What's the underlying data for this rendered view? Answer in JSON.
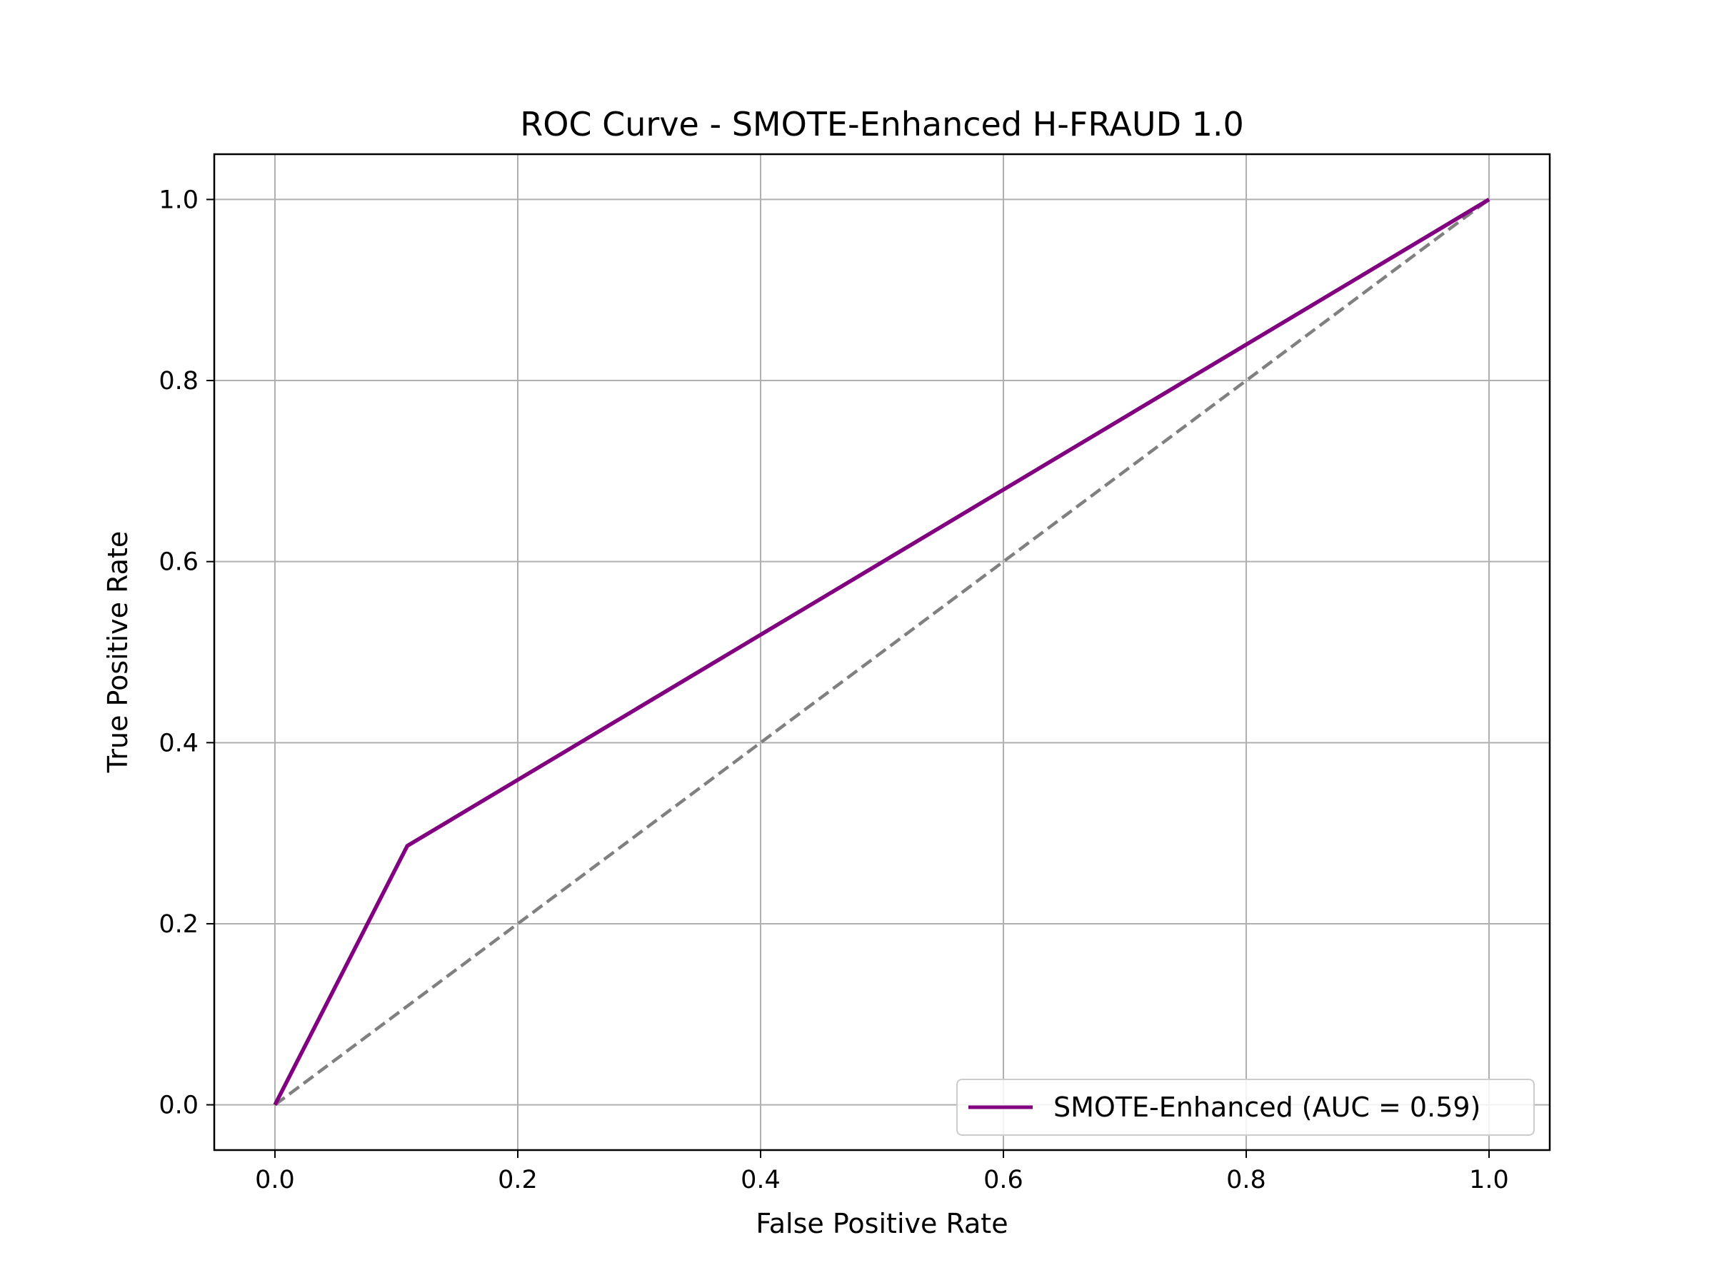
{
  "chart_data": {
    "type": "line",
    "title": "ROC Curve - SMOTE-Enhanced H-FRAUD 1.0",
    "xlabel": "False Positive Rate",
    "ylabel": "True Positive Rate",
    "xlim": [
      -0.05,
      1.05
    ],
    "ylim": [
      -0.05,
      1.05
    ],
    "xticks": [
      0.0,
      0.2,
      0.4,
      0.6,
      0.8,
      1.0
    ],
    "yticks": [
      0.0,
      0.2,
      0.4,
      0.6,
      0.8,
      1.0
    ],
    "xtick_labels": [
      "0.0",
      "0.2",
      "0.4",
      "0.6",
      "0.8",
      "1.0"
    ],
    "ytick_labels": [
      "0.0",
      "0.2",
      "0.4",
      "0.6",
      "0.8",
      "1.0"
    ],
    "grid": true,
    "legend_position": "lower-right",
    "series": [
      {
        "name": "SMOTE-Enhanced (AUC = 0.59)",
        "x": [
          0.0,
          0.109,
          1.0
        ],
        "y": [
          0.0,
          0.286,
          1.0
        ],
        "color": "#800080",
        "style": "solid"
      },
      {
        "x": [
          0.0,
          1.0
        ],
        "y": [
          0.0,
          1.0
        ],
        "color": "#808080",
        "style": "dashed"
      }
    ]
  }
}
